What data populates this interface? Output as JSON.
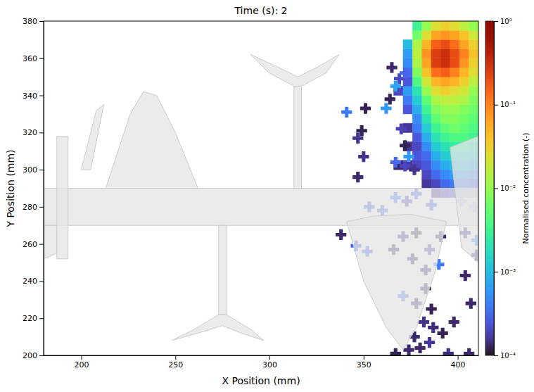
{
  "chart_data": {
    "type": "heatmap",
    "title": "Time (s): 2",
    "x_label": "X Position (mm)",
    "y_label": "Y Position (mm)",
    "xlim": [
      180,
      411
    ],
    "ylim": [
      200,
      380
    ],
    "xticks": [
      200,
      250,
      300,
      350,
      400
    ],
    "yticks": [
      200,
      220,
      240,
      260,
      280,
      300,
      320,
      340,
      360,
      380
    ],
    "grid": false,
    "cells": {
      "x_edges": [
        366,
        371,
        376,
        381,
        386,
        391,
        396,
        401,
        406,
        411
      ],
      "y_edges": [
        285,
        290,
        295,
        300,
        305,
        310,
        315,
        320,
        325,
        330,
        335,
        340,
        345,
        350,
        355,
        360,
        365,
        370,
        375,
        380
      ],
      "values": [
        [
          null,
          null,
          null,
          null,
          0.00016,
          0.0002,
          0.00025,
          0.00025,
          0.0002
        ],
        [
          null,
          null,
          null,
          0.00016,
          0.0002,
          0.00032,
          0.0004,
          0.0004,
          0.00032
        ],
        [
          null,
          null,
          null,
          0.0002,
          0.00032,
          0.0005,
          0.00063,
          0.00063,
          0.0005
        ],
        [
          0.00013,
          0.00016,
          0.0002,
          0.00025,
          0.0005,
          0.00079,
          0.001,
          0.001,
          0.00079
        ],
        [
          null,
          null,
          0.00025,
          0.00032,
          0.00079,
          0.0013,
          0.0016,
          0.0016,
          0.0013
        ],
        [
          null,
          0.00016,
          0.0002,
          0.0005,
          0.0013,
          0.002,
          0.0025,
          0.0025,
          0.002
        ],
        [
          null,
          null,
          0.00025,
          0.00079,
          0.002,
          0.0032,
          0.004,
          0.004,
          0.0032
        ],
        [
          null,
          0.00016,
          0.0004,
          0.0013,
          0.0032,
          0.005,
          0.0063,
          0.005,
          0.004
        ],
        [
          null,
          null,
          0.0005,
          0.002,
          0.005,
          0.0079,
          0.0079,
          0.0063,
          0.005
        ],
        [
          null,
          0.00025,
          0.00079,
          0.0032,
          0.0079,
          0.01,
          0.01,
          0.0079,
          0.0063
        ],
        [
          null,
          0.0004,
          0.0013,
          0.005,
          0.013,
          0.016,
          0.016,
          0.013,
          0.0079
        ],
        [
          0.0002,
          0.00063,
          0.002,
          0.01,
          0.025,
          0.032,
          0.025,
          0.02,
          0.01
        ],
        [
          null,
          0.00025,
          0.004,
          0.02,
          0.05,
          0.063,
          0.05,
          0.032,
          0.016
        ],
        [
          null,
          0.00032,
          0.0079,
          0.04,
          0.13,
          0.16,
          0.1,
          0.05,
          0.025
        ],
        [
          null,
          0.0005,
          0.013,
          0.063,
          0.25,
          0.32,
          0.2,
          0.079,
          0.032
        ],
        [
          null,
          0.00063,
          0.016,
          0.079,
          0.25,
          0.32,
          0.2,
          0.1,
          0.04
        ],
        [
          null,
          0.001,
          0.013,
          0.05,
          0.16,
          0.2,
          0.13,
          0.063,
          0.032
        ],
        [
          null,
          null,
          0.0063,
          0.025,
          0.063,
          0.079,
          0.063,
          0.04,
          0.02
        ],
        [
          null,
          null,
          0.0032,
          0.01,
          0.025,
          0.032,
          0.025,
          0.016,
          0.01
        ]
      ]
    },
    "points": {
      "marker": "plus",
      "x": [
        341,
        351,
        362,
        347,
        349,
        350,
        347,
        364,
        367,
        369,
        372,
        365,
        370,
        367,
        372,
        372,
        377,
        374,
        353,
        360,
        367,
        373,
        378,
        386,
        402,
        409,
        338,
        346,
        352,
        366,
        371,
        378,
        391,
        404,
        410,
        385,
        376,
        390,
        383,
        404,
        371,
        383,
        378,
        386,
        382,
        398,
        387,
        392,
        377,
        385,
        380,
        367,
        374,
        395,
        406,
        410,
        407
      ],
      "y": [
        331,
        333,
        333,
        317,
        321,
        307,
        296,
        338,
        345,
        349,
        352,
        355,
        322,
        304,
        313,
        302,
        300,
        307,
        280,
        278,
        285,
        283,
        287,
        281,
        283,
        280,
        265,
        259,
        256,
        257,
        264,
        266,
        264,
        266,
        262,
        257,
        252,
        249,
        246,
        243,
        232,
        236,
        228,
        225,
        218,
        218,
        215,
        212,
        210,
        207,
        204,
        201,
        203,
        201,
        201,
        254,
        228
      ],
      "values": [
        0.0004,
        0.00012,
        0.0006,
        0.00015,
        0.00012,
        0.00015,
        0.00013,
        0.00012,
        0.0007,
        0.0002,
        0.0003,
        0.00013,
        0.00018,
        0.0003,
        0.00012,
        0.0002,
        0.00015,
        0.0006,
        0.0003,
        0.0003,
        0.0004,
        0.0002,
        0.0003,
        0.0003,
        0.0003,
        0.0003,
        0.00013,
        0.0003,
        0.0003,
        0.00013,
        0.00015,
        0.00012,
        0.00014,
        0.00015,
        0.0005,
        0.0002,
        0.00013,
        0.0004,
        0.00013,
        0.00013,
        0.0004,
        0.00012,
        0.00013,
        0.00012,
        0.00015,
        0.00013,
        0.00014,
        0.00012,
        0.00013,
        0.00016,
        0.00013,
        0.00012,
        0.00013,
        0.00014,
        0.00013,
        0.00015,
        0.00013
      ]
    },
    "colorbar": {
      "label": "Normalised concentration (-)",
      "log": true,
      "range": [
        0.0001,
        1
      ],
      "ticks": [
        {
          "value": 1,
          "label": "10⁰"
        },
        {
          "value": 0.1,
          "label": "10⁻¹"
        },
        {
          "value": 0.01,
          "label": "10⁻²"
        },
        {
          "value": 0.001,
          "label": "10⁻³"
        },
        {
          "value": 0.0001,
          "label": "10⁻⁴"
        }
      ]
    }
  }
}
